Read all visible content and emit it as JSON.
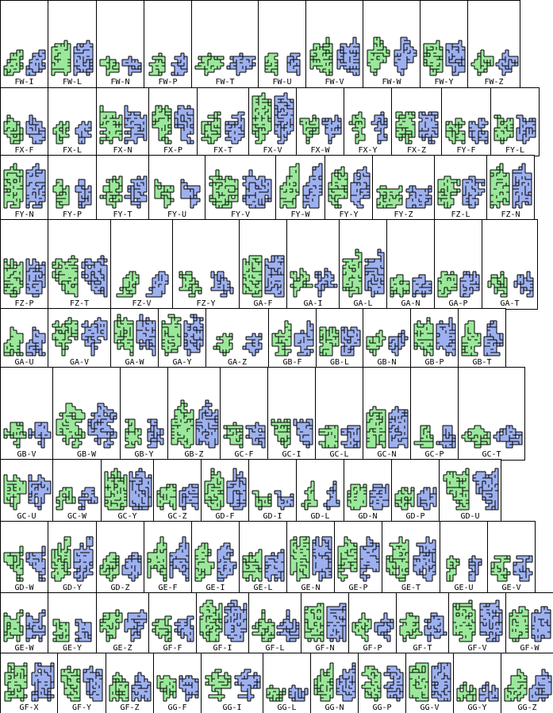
{
  "colors": {
    "green": "#9ae89a",
    "blue": "#9db0ef",
    "outline": "#000000"
  },
  "rows": [
    [
      "FW-I",
      "FW-L",
      "FW-N",
      "FW-P",
      "FW-T",
      "FW-U",
      "FW-V",
      "FW-W",
      "FW-Y",
      "FW-Z"
    ],
    [
      "FX-F",
      "FX-L",
      "FX-N",
      "FX-P",
      "FX-T",
      "FX-V",
      "FX-W",
      "FX-Y",
      "FX-Z",
      "FY-F",
      "FY-L"
    ],
    [
      "FY-N",
      "FY-P",
      "FY-T",
      "FY-U",
      "FY-V",
      "FY-W",
      "FY-Y",
      "FY-Z",
      "FZ-L",
      "FZ-N"
    ],
    [
      "FZ-P",
      "FZ-T",
      "FZ-V",
      "FZ-Y",
      "GA-F",
      "GA-I",
      "GA-L",
      "GA-N",
      "GA-P",
      "GA-T"
    ],
    [
      "GA-U",
      "GA-V",
      "GA-W",
      "GA-Y",
      "GA-Z",
      "GB-F",
      "GB-L",
      "GB-N",
      "GB-P",
      "GB-T"
    ],
    [
      "GB-V",
      "GB-W",
      "GB-Y",
      "GB-Z",
      "GC-F",
      "GC-I",
      "GC-L",
      "GC-N",
      "GC-P",
      "GC-T"
    ],
    [
      "GC-U",
      "GC-W",
      "GC-Y",
      "GC-Z",
      "GD-F",
      "GD-I",
      "GD-L",
      "GD-N",
      "GD-P",
      "GD-U"
    ],
    [
      "GD-W",
      "GD-Y",
      "GD-Z",
      "GE-F",
      "GE-I",
      "GE-L",
      "GE-N",
      "GE-P",
      "GE-T",
      "GE-U",
      "GE-V"
    ],
    [
      "GE-W",
      "GE-Y",
      "GE-Z",
      "GF-F",
      "GF-I",
      "GF-L",
      "GF-N",
      "GF-P",
      "GF-T",
      "GF-V",
      "GF-W"
    ],
    [
      "GF-X",
      "GF-Y",
      "GF-Z",
      "GG-F",
      "GG-I",
      "GG-L",
      "GG-N",
      "GG-P",
      "GG-V",
      "GG-Y",
      "GG-Z"
    ]
  ]
}
